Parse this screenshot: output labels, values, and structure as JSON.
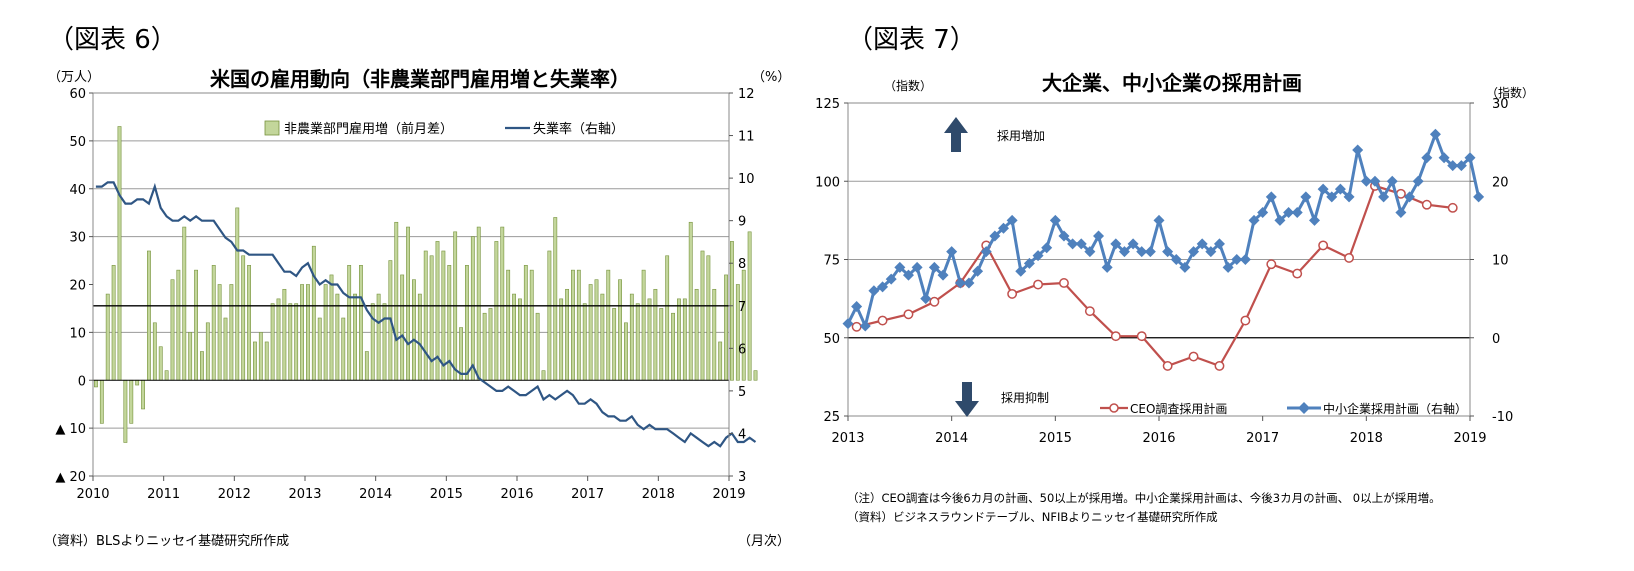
{
  "fig6": {
    "fig_label": "（図表 6）",
    "title": "米国の雇用動向（非農業部門雇用増と失業率）",
    "left_unit": "（万人）",
    "right_unit": "（%）",
    "source": "（資料）BLSよりニッセイ基礎研究所作成",
    "x_unit": "（月次）",
    "legend_bar": "非農業部門雇用増（前月差）",
    "legend_line": "失業率（右軸）"
  },
  "fig7": {
    "fig_label": "（図表 7）",
    "title": "大企業、中小企業の採用計画",
    "left_unit": "（指数）",
    "right_unit": "（指数）",
    "arrow_up_label": "採用増加",
    "arrow_down_label": "採用抑制",
    "legend_ceo": "CEO調査採用計画",
    "legend_nfib": "中小企業採用計画（右軸）",
    "note1": "（注）CEO調査は今後6カ月の計画、50以上が採用増。中小企業採用計画は、今後3カ月の計画、 0以上が採用増。",
    "note2": "（資料）ビジネスラウンドテーブル、NFIBよりニッセイ基礎研究所作成"
  },
  "chart_data": [
    {
      "type": "bar",
      "title": "米国の雇用動向（非農業部門雇用増と失業率）",
      "xlabel": "",
      "ylabel": "（万人）",
      "y2label": "（%）",
      "x_ticks": [
        "2010",
        "2011",
        "2012",
        "2013",
        "2014",
        "2015",
        "2016",
        "2017",
        "2018",
        "2019"
      ],
      "ylim": [
        -20,
        60
      ],
      "y_ticks": [
        60,
        50,
        40,
        30,
        20,
        10,
        0,
        -10,
        -20
      ],
      "y_tick_labels": [
        "60",
        "50",
        "40",
        "30",
        "20",
        "10",
        "0",
        "▲ 10",
        "▲ 20"
      ],
      "y2lim": [
        3,
        12
      ],
      "y2_ticks": [
        12,
        11,
        10,
        9,
        8,
        7,
        6,
        5,
        4,
        3
      ],
      "y2_tick_labels": [
        "12",
        "11",
        "10",
        "9",
        "8",
        "7",
        "6",
        "5",
        "4",
        "3"
      ],
      "legend_position": "top-center",
      "grid": true,
      "series": [
        {
          "name": "非農業部門雇用増（前月差）",
          "kind": "bar",
          "axis": "left",
          "color": "#c3d69b",
          "start": "2010-01",
          "values": [
            -1.4,
            -9,
            18,
            24,
            53,
            -13,
            -9,
            -1,
            -6,
            27,
            12,
            7,
            2,
            21,
            23,
            32,
            10,
            23,
            6,
            12,
            24,
            20,
            13,
            20,
            36,
            26,
            24,
            8,
            10,
            8,
            16,
            17,
            19,
            16,
            16,
            20,
            20,
            28,
            13,
            20,
            22,
            18,
            13,
            24,
            18,
            24,
            6,
            16,
            18,
            16,
            25,
            33,
            22,
            32,
            21,
            18,
            27,
            26,
            29,
            27,
            24,
            31,
            11,
            24,
            30,
            32,
            14,
            15,
            29,
            32,
            23,
            18,
            17,
            24,
            23,
            14,
            2,
            27,
            34,
            17,
            19,
            23,
            23,
            16,
            20,
            21,
            18,
            23,
            15,
            21,
            12,
            18,
            16,
            23,
            17,
            19,
            15,
            26,
            14,
            17,
            17,
            33,
            19,
            27,
            26,
            19,
            8,
            22,
            29,
            20,
            23,
            31,
            2
          ]
        },
        {
          "name": "失業率（右軸）",
          "kind": "line",
          "axis": "right",
          "color": "#2f5684",
          "start": "2010-01",
          "values": [
            9.8,
            9.8,
            9.9,
            9.9,
            9.6,
            9.4,
            9.4,
            9.5,
            9.5,
            9.4,
            9.8,
            9.3,
            9.1,
            9.0,
            9.0,
            9.1,
            9.0,
            9.1,
            9.0,
            9.0,
            9.0,
            8.8,
            8.6,
            8.5,
            8.3,
            8.3,
            8.2,
            8.2,
            8.2,
            8.2,
            8.2,
            8.0,
            7.8,
            7.8,
            7.7,
            7.9,
            8.0,
            7.7,
            7.5,
            7.6,
            7.5,
            7.5,
            7.3,
            7.2,
            7.2,
            7.2,
            6.9,
            6.7,
            6.6,
            6.7,
            6.7,
            6.2,
            6.3,
            6.1,
            6.2,
            6.1,
            5.9,
            5.7,
            5.8,
            5.6,
            5.7,
            5.5,
            5.4,
            5.4,
            5.6,
            5.3,
            5.2,
            5.1,
            5.0,
            5.0,
            5.1,
            5.0,
            4.9,
            4.9,
            5.0,
            5.1,
            4.8,
            4.9,
            4.8,
            4.9,
            5.0,
            4.9,
            4.7,
            4.7,
            4.8,
            4.7,
            4.5,
            4.4,
            4.4,
            4.3,
            4.3,
            4.4,
            4.2,
            4.1,
            4.2,
            4.1,
            4.1,
            4.1,
            4.0,
            3.9,
            3.8,
            4.0,
            3.9,
            3.8,
            3.7,
            3.8,
            3.7,
            3.9,
            4.0,
            3.8,
            3.8,
            3.9,
            3.8
          ]
        }
      ]
    },
    {
      "type": "line",
      "title": "大企業、中小企業の採用計画",
      "xlabel": "",
      "ylabel": "（指数）",
      "y2label": "（指数）",
      "x_ticks": [
        "2013",
        "2014",
        "2015",
        "2016",
        "2017",
        "2018",
        "2019"
      ],
      "ylim": [
        25,
        125
      ],
      "y_ticks": [
        125,
        100,
        75,
        50,
        25
      ],
      "y2lim": [
        -10,
        30
      ],
      "y2_ticks": [
        30,
        20,
        10,
        0,
        -10
      ],
      "legend_position": "bottom-right",
      "grid": true,
      "series": [
        {
          "name": "CEO調査採用計画",
          "axis": "left",
          "color": "#c0504d",
          "marker": "circle-open",
          "x": [
            "2013Q1",
            "2013Q2",
            "2013Q3",
            "2013Q4",
            "2014Q1",
            "2014Q2",
            "2014Q3",
            "2014Q4",
            "2015Q1",
            "2015Q2",
            "2015Q3",
            "2015Q4",
            "2016Q1",
            "2016Q2",
            "2016Q3",
            "2016Q4",
            "2017Q1",
            "2017Q2",
            "2017Q3",
            "2017Q4",
            "2018Q1",
            "2018Q2",
            "2018Q3",
            "2018Q4"
          ],
          "values": [
            53.5,
            55.5,
            57.5,
            61.5,
            67.5,
            79.5,
            64,
            67,
            67.5,
            58.5,
            50.5,
            50.5,
            41,
            44,
            41,
            55.5,
            73.5,
            70.5,
            79.5,
            75.5,
            98.5,
            96,
            92.5,
            91.5
          ]
        },
        {
          "name": "中小企業採用計画（右軸）",
          "axis": "right",
          "color": "#4f81bd",
          "marker": "diamond",
          "start": "2013-01",
          "values": [
            1.8,
            4,
            1.5,
            6,
            6.5,
            7.5,
            9,
            8,
            9,
            5,
            9,
            8,
            11,
            7,
            7,
            8.5,
            11,
            13,
            14,
            15,
            8.5,
            9.5,
            10.5,
            11.5,
            15,
            13,
            12,
            12,
            11,
            13,
            9,
            12,
            11,
            12,
            11,
            11,
            15,
            11,
            10,
            9,
            11,
            12,
            11,
            12,
            9,
            10,
            10,
            15,
            16,
            18,
            15,
            16,
            16,
            18,
            15,
            19,
            18,
            19,
            18,
            24,
            20,
            20,
            18,
            20,
            16,
            18,
            20,
            23,
            26,
            23,
            22,
            22,
            23,
            18
          ]
        }
      ]
    }
  ]
}
